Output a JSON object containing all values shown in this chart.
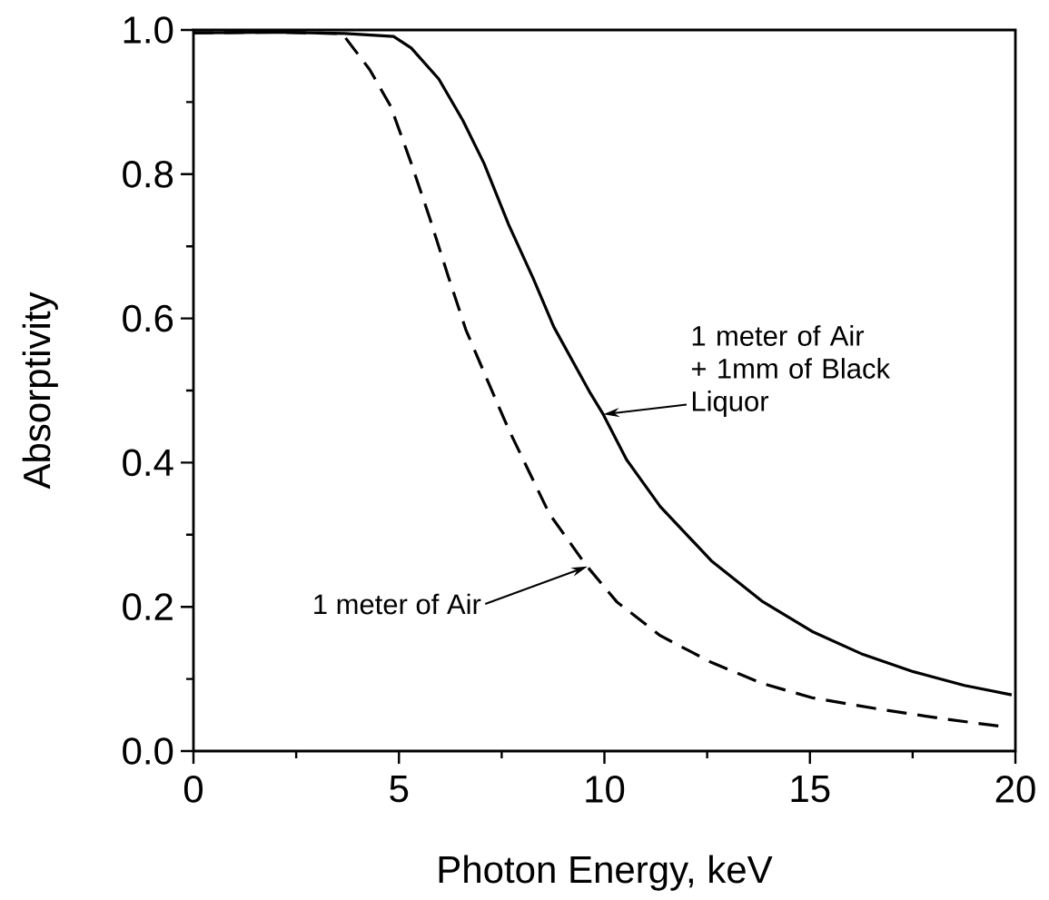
{
  "chart_data": {
    "type": "line",
    "xlabel": "Photon Energy, keV",
    "ylabel": "Absorptivity",
    "xlim": [
      0,
      20
    ],
    "ylim": [
      0,
      1
    ],
    "xticks": [
      0,
      5,
      10,
      15,
      20
    ],
    "yticks": [
      {
        "value": 0,
        "label": "0.0"
      },
      0.2,
      0.4,
      0.6,
      0.8,
      {
        "value": 1,
        "label": "1.0"
      }
    ],
    "series": [
      {
        "color": "#000000",
        "line_style": "solid",
        "x": [
          0,
          2,
          3.69,
          4.87,
          5.3,
          5.97,
          6.56,
          7.07,
          7.67,
          8.27,
          8.77,
          9.66,
          9.97,
          10.54,
          11.36,
          12.6,
          13.83,
          15.05,
          16.29,
          17.52,
          18.76,
          19.91
        ],
        "values": [
          0.996,
          0.997,
          0.995,
          0.991,
          0.975,
          0.932,
          0.874,
          0.815,
          0.73,
          0.655,
          0.588,
          0.496,
          0.467,
          0.404,
          0.339,
          0.264,
          0.208,
          0.166,
          0.134,
          0.11,
          0.091,
          0.078
        ]
      },
      {
        "color": "#000000",
        "line_style": "dashed",
        "x": [
          0,
          2,
          3.62,
          4.29,
          4.8,
          5.3,
          5.75,
          6.19,
          6.63,
          7.29,
          7.67,
          8.66,
          9.55,
          10.3,
          11.36,
          12.6,
          13.83,
          15.05,
          16.7,
          18.34,
          19.69
        ],
        "values": [
          0.996,
          0.997,
          0.995,
          0.945,
          0.894,
          0.815,
          0.739,
          0.66,
          0.584,
          0.496,
          0.446,
          0.329,
          0.258,
          0.207,
          0.16,
          0.123,
          0.094,
          0.074,
          0.058,
          0.044,
          0.034
        ]
      }
    ],
    "annotations": [
      "1 meter of Air + 1mm of Black Liquor",
      "1 meter of Air"
    ]
  }
}
